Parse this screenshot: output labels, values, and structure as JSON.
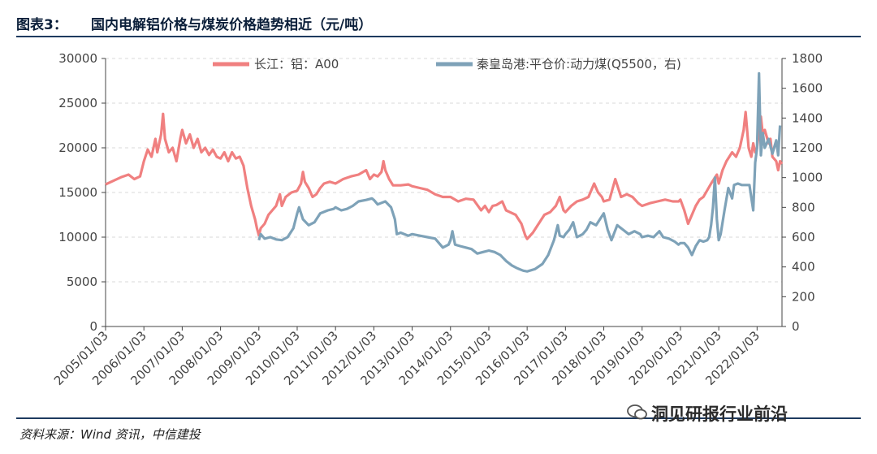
{
  "header": {
    "figure_number": "图表3：",
    "title": "国内电解铝价格与煤炭价格趋势相近（元/吨）"
  },
  "footer": {
    "source": "资料来源：Wind 资讯，中信建投",
    "watermark": "洞见研报行业前沿"
  },
  "colors": {
    "aluminum": "#f08080",
    "coal": "#7ea2b8",
    "rule": "#1e3a5f"
  },
  "chart_data": {
    "type": "line",
    "title": "国内电解铝价格与煤炭价格趋势相近（元/吨）",
    "x_ticks": [
      "2005/01/03",
      "2006/01/03",
      "2007/01/03",
      "2008/01/03",
      "2009/01/03",
      "2010/01/03",
      "2011/01/03",
      "2012/01/03",
      "2013/01/03",
      "2014/01/03",
      "2015/01/03",
      "2016/01/03",
      "2017/01/03",
      "2018/01/03",
      "2019/01/03",
      "2020/01/03",
      "2021/01/03",
      "2022/01/03"
    ],
    "x_range": [
      2005.0,
      2022.65
    ],
    "y_left": {
      "range": [
        0,
        30000
      ],
      "ticks": [
        "0",
        "5000",
        "10000",
        "15000",
        "20000",
        "25000",
        "30000"
      ]
    },
    "y_right": {
      "range": [
        0,
        1800
      ],
      "ticks": [
        "0",
        "200",
        "400",
        "600",
        "800",
        "1000",
        "1200",
        "1400",
        "1600",
        "1800"
      ]
    },
    "series": [
      {
        "name": "长江：铝：A00",
        "axis": "left",
        "points": [
          [
            2005.0,
            15900
          ],
          [
            2005.2,
            16300
          ],
          [
            2005.4,
            16700
          ],
          [
            2005.6,
            17000
          ],
          [
            2005.75,
            16500
          ],
          [
            2005.9,
            16800
          ],
          [
            2006.0,
            18500
          ],
          [
            2006.1,
            19800
          ],
          [
            2006.2,
            19000
          ],
          [
            2006.3,
            21000
          ],
          [
            2006.35,
            19500
          ],
          [
            2006.45,
            21500
          ],
          [
            2006.5,
            23800
          ],
          [
            2006.55,
            21000
          ],
          [
            2006.65,
            19500
          ],
          [
            2006.75,
            20000
          ],
          [
            2006.85,
            18500
          ],
          [
            2006.95,
            21000
          ],
          [
            2007.0,
            22000
          ],
          [
            2007.1,
            20500
          ],
          [
            2007.2,
            21500
          ],
          [
            2007.3,
            20000
          ],
          [
            2007.4,
            21000
          ],
          [
            2007.5,
            19500
          ],
          [
            2007.6,
            20000
          ],
          [
            2007.7,
            19200
          ],
          [
            2007.8,
            19800
          ],
          [
            2007.9,
            19000
          ],
          [
            2008.0,
            18800
          ],
          [
            2008.1,
            19500
          ],
          [
            2008.2,
            18500
          ],
          [
            2008.3,
            19500
          ],
          [
            2008.4,
            18800
          ],
          [
            2008.5,
            19000
          ],
          [
            2008.6,
            18000
          ],
          [
            2008.7,
            15500
          ],
          [
            2008.8,
            13500
          ],
          [
            2008.9,
            12000
          ],
          [
            2008.95,
            11000
          ],
          [
            2009.0,
            10200
          ],
          [
            2009.05,
            11000
          ],
          [
            2009.15,
            11500
          ],
          [
            2009.25,
            12500
          ],
          [
            2009.35,
            13000
          ],
          [
            2009.45,
            13500
          ],
          [
            2009.55,
            14800
          ],
          [
            2009.6,
            13500
          ],
          [
            2009.7,
            14500
          ],
          [
            2009.85,
            15000
          ],
          [
            2010.0,
            15200
          ],
          [
            2010.1,
            16000
          ],
          [
            2010.15,
            17300
          ],
          [
            2010.2,
            16200
          ],
          [
            2010.3,
            15500
          ],
          [
            2010.4,
            14500
          ],
          [
            2010.5,
            14800
          ],
          [
            2010.6,
            15500
          ],
          [
            2010.7,
            16000
          ],
          [
            2010.85,
            16200
          ],
          [
            2011.0,
            16000
          ],
          [
            2011.2,
            16500
          ],
          [
            2011.4,
            16800
          ],
          [
            2011.6,
            17000
          ],
          [
            2011.8,
            17500
          ],
          [
            2011.9,
            16500
          ],
          [
            2012.0,
            17000
          ],
          [
            2012.1,
            16800
          ],
          [
            2012.2,
            17300
          ],
          [
            2012.25,
            18500
          ],
          [
            2012.3,
            17500
          ],
          [
            2012.4,
            16500
          ],
          [
            2012.5,
            15800
          ],
          [
            2012.7,
            15800
          ],
          [
            2012.9,
            15900
          ],
          [
            2013.0,
            15700
          ],
          [
            2013.2,
            15500
          ],
          [
            2013.4,
            15300
          ],
          [
            2013.6,
            14800
          ],
          [
            2013.8,
            14500
          ],
          [
            2013.95,
            14500
          ],
          [
            2014.0,
            14500
          ],
          [
            2014.2,
            14000
          ],
          [
            2014.4,
            14300
          ],
          [
            2014.6,
            14200
          ],
          [
            2014.8,
            13000
          ],
          [
            2014.9,
            13500
          ],
          [
            2015.0,
            12800
          ],
          [
            2015.1,
            13500
          ],
          [
            2015.2,
            13600
          ],
          [
            2015.35,
            14000
          ],
          [
            2015.45,
            13000
          ],
          [
            2015.55,
            12800
          ],
          [
            2015.7,
            12500
          ],
          [
            2015.85,
            11500
          ],
          [
            2015.95,
            10200
          ],
          [
            2016.0,
            9800
          ],
          [
            2016.15,
            10500
          ],
          [
            2016.3,
            11500
          ],
          [
            2016.45,
            12500
          ],
          [
            2016.6,
            12800
          ],
          [
            2016.75,
            13500
          ],
          [
            2016.85,
            14500
          ],
          [
            2016.95,
            13000
          ],
          [
            2017.0,
            12800
          ],
          [
            2017.15,
            13500
          ],
          [
            2017.3,
            14000
          ],
          [
            2017.45,
            14200
          ],
          [
            2017.6,
            14500
          ],
          [
            2017.75,
            16000
          ],
          [
            2017.85,
            15000
          ],
          [
            2017.95,
            14500
          ],
          [
            2018.0,
            14000
          ],
          [
            2018.15,
            14200
          ],
          [
            2018.3,
            16500
          ],
          [
            2018.45,
            14500
          ],
          [
            2018.6,
            14800
          ],
          [
            2018.75,
            14500
          ],
          [
            2018.9,
            13800
          ],
          [
            2019.0,
            13500
          ],
          [
            2019.2,
            13800
          ],
          [
            2019.4,
            14000
          ],
          [
            2019.6,
            14200
          ],
          [
            2019.8,
            14000
          ],
          [
            2019.95,
            14000
          ],
          [
            2020.0,
            14200
          ],
          [
            2020.1,
            13000
          ],
          [
            2020.2,
            11500
          ],
          [
            2020.3,
            12500
          ],
          [
            2020.4,
            13500
          ],
          [
            2020.5,
            14200
          ],
          [
            2020.6,
            14500
          ],
          [
            2020.8,
            16000
          ],
          [
            2020.95,
            17000
          ],
          [
            2021.0,
            16000
          ],
          [
            2021.1,
            17500
          ],
          [
            2021.2,
            18500
          ],
          [
            2021.35,
            19500
          ],
          [
            2021.45,
            19000
          ],
          [
            2021.55,
            20000
          ],
          [
            2021.65,
            22000
          ],
          [
            2021.7,
            24000
          ],
          [
            2021.78,
            20000
          ],
          [
            2021.85,
            19000
          ],
          [
            2021.9,
            20500
          ],
          [
            2021.95,
            19500
          ],
          [
            2022.0,
            20000
          ],
          [
            2022.05,
            22000
          ],
          [
            2022.1,
            23500
          ],
          [
            2022.15,
            21500
          ],
          [
            2022.2,
            22000
          ],
          [
            2022.3,
            20500
          ],
          [
            2022.35,
            21000
          ],
          [
            2022.4,
            19000
          ],
          [
            2022.5,
            18500
          ],
          [
            2022.55,
            17500
          ],
          [
            2022.6,
            18500
          ],
          [
            2022.65,
            18200
          ]
        ]
      },
      {
        "name": "秦皇岛港:平仓价:动力煤(Q5500，右)",
        "axis": "right",
        "points": [
          [
            2009.0,
            580
          ],
          [
            2009.05,
            620
          ],
          [
            2009.15,
            590
          ],
          [
            2009.3,
            600
          ],
          [
            2009.45,
            585
          ],
          [
            2009.6,
            580
          ],
          [
            2009.75,
            600
          ],
          [
            2009.9,
            660
          ],
          [
            2010.0,
            760
          ],
          [
            2010.05,
            800
          ],
          [
            2010.15,
            720
          ],
          [
            2010.3,
            680
          ],
          [
            2010.45,
            700
          ],
          [
            2010.6,
            760
          ],
          [
            2010.8,
            780
          ],
          [
            2010.95,
            790
          ],
          [
            2011.0,
            800
          ],
          [
            2011.15,
            780
          ],
          [
            2011.3,
            790
          ],
          [
            2011.45,
            810
          ],
          [
            2011.6,
            840
          ],
          [
            2011.8,
            850
          ],
          [
            2011.95,
            860
          ],
          [
            2012.0,
            850
          ],
          [
            2012.1,
            820
          ],
          [
            2012.2,
            830
          ],
          [
            2012.3,
            840
          ],
          [
            2012.45,
            800
          ],
          [
            2012.55,
            720
          ],
          [
            2012.6,
            620
          ],
          [
            2012.7,
            630
          ],
          [
            2012.9,
            610
          ],
          [
            2013.0,
            620
          ],
          [
            2013.2,
            610
          ],
          [
            2013.4,
            600
          ],
          [
            2013.6,
            590
          ],
          [
            2013.7,
            560
          ],
          [
            2013.8,
            530
          ],
          [
            2013.95,
            550
          ],
          [
            2014.0,
            580
          ],
          [
            2014.05,
            640
          ],
          [
            2014.12,
            550
          ],
          [
            2014.25,
            540
          ],
          [
            2014.4,
            530
          ],
          [
            2014.55,
            520
          ],
          [
            2014.7,
            490
          ],
          [
            2014.85,
            500
          ],
          [
            2015.0,
            510
          ],
          [
            2015.15,
            500
          ],
          [
            2015.3,
            480
          ],
          [
            2015.45,
            440
          ],
          [
            2015.6,
            410
          ],
          [
            2015.75,
            390
          ],
          [
            2015.9,
            375
          ],
          [
            2016.0,
            370
          ],
          [
            2016.2,
            385
          ],
          [
            2016.4,
            420
          ],
          [
            2016.55,
            480
          ],
          [
            2016.7,
            580
          ],
          [
            2016.8,
            680
          ],
          [
            2016.85,
            610
          ],
          [
            2016.95,
            600
          ],
          [
            2017.0,
            620
          ],
          [
            2017.1,
            650
          ],
          [
            2017.2,
            700
          ],
          [
            2017.3,
            600
          ],
          [
            2017.45,
            620
          ],
          [
            2017.55,
            650
          ],
          [
            2017.65,
            700
          ],
          [
            2017.8,
            680
          ],
          [
            2017.95,
            740
          ],
          [
            2018.0,
            760
          ],
          [
            2018.1,
            650
          ],
          [
            2018.2,
            580
          ],
          [
            2018.35,
            680
          ],
          [
            2018.5,
            650
          ],
          [
            2018.65,
            620
          ],
          [
            2018.8,
            640
          ],
          [
            2018.95,
            620
          ],
          [
            2019.0,
            600
          ],
          [
            2019.15,
            610
          ],
          [
            2019.3,
            600
          ],
          [
            2019.45,
            640
          ],
          [
            2019.55,
            600
          ],
          [
            2019.7,
            590
          ],
          [
            2019.85,
            570
          ],
          [
            2019.95,
            550
          ],
          [
            2020.0,
            560
          ],
          [
            2020.1,
            560
          ],
          [
            2020.2,
            530
          ],
          [
            2020.3,
            480
          ],
          [
            2020.4,
            540
          ],
          [
            2020.5,
            580
          ],
          [
            2020.6,
            570
          ],
          [
            2020.7,
            580
          ],
          [
            2020.75,
            600
          ],
          [
            2020.8,
            680
          ],
          [
            2020.85,
            800
          ],
          [
            2020.9,
            1000
          ],
          [
            2020.95,
            720
          ],
          [
            2021.0,
            580
          ],
          [
            2021.05,
            620
          ],
          [
            2021.15,
            780
          ],
          [
            2021.25,
            930
          ],
          [
            2021.35,
            860
          ],
          [
            2021.4,
            950
          ],
          [
            2021.5,
            960
          ],
          [
            2021.6,
            950
          ],
          [
            2021.7,
            950
          ],
          [
            2021.8,
            950
          ],
          [
            2021.9,
            780
          ],
          [
            2021.95,
            1100
          ],
          [
            2022.0,
            1200
          ],
          [
            2022.05,
            1700
          ],
          [
            2022.1,
            1150
          ],
          [
            2022.15,
            1300
          ],
          [
            2022.2,
            1200
          ],
          [
            2022.3,
            1260
          ],
          [
            2022.4,
            1160
          ],
          [
            2022.5,
            1250
          ],
          [
            2022.55,
            1150
          ],
          [
            2022.6,
            1350
          ]
        ]
      }
    ]
  }
}
